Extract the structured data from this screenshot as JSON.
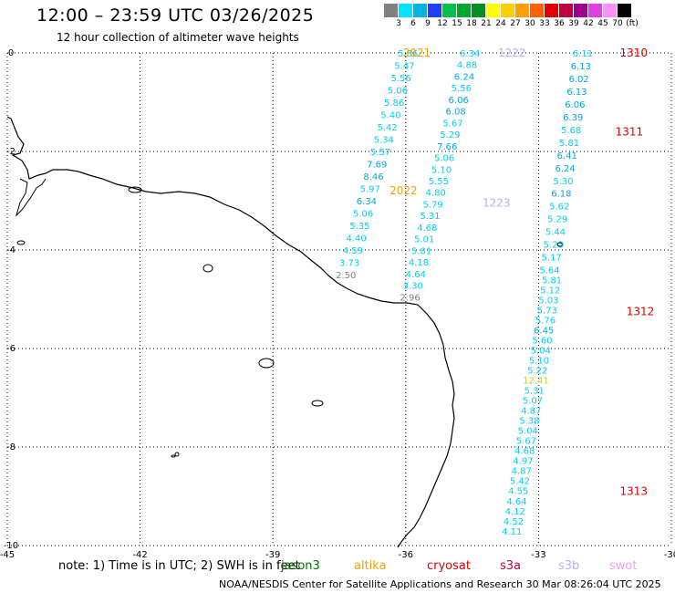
{
  "header": {
    "title": "12:00 – 23:59 UTC 03/26/2025",
    "subtitle": "12 hour collection of altimeter wave heights"
  },
  "legend": {
    "unit": "(ft)",
    "bins": [
      {
        "label": "3",
        "color": "#808080"
      },
      {
        "label": "6",
        "color": "#00e5ff"
      },
      {
        "label": "9",
        "color": "#00b5e5"
      },
      {
        "label": "12",
        "color": "#1f3fff"
      },
      {
        "label": "15",
        "color": "#00c050"
      },
      {
        "label": "18",
        "color": "#00a830"
      },
      {
        "label": "21",
        "color": "#009020"
      },
      {
        "label": "24",
        "color": "#ffff00"
      },
      {
        "label": "27",
        "color": "#ffd000"
      },
      {
        "label": "30",
        "color": "#ffa000"
      },
      {
        "label": "33",
        "color": "#ff6000"
      },
      {
        "label": "36",
        "color": "#e00000"
      },
      {
        "label": "39",
        "color": "#c00040"
      },
      {
        "label": "42",
        "color": "#a00090"
      },
      {
        "label": "45",
        "color": "#e040e0"
      },
      {
        "label": "70",
        "color": "#ff90ff"
      },
      {
        "label": "",
        "color": "#000000"
      }
    ]
  },
  "map": {
    "lon_ticks": [
      {
        "lon": -45,
        "label": "-45"
      },
      {
        "lon": -42,
        "label": "-42"
      },
      {
        "lon": -39,
        "label": "-39"
      },
      {
        "lon": -36,
        "label": "-36"
      },
      {
        "lon": -33,
        "label": "-33"
      },
      {
        "lon": -30,
        "label": "-30"
      }
    ],
    "lat_ticks": [
      {
        "lat": 0,
        "label": "0"
      },
      {
        "lat": -2,
        "label": "-2"
      },
      {
        "lat": -4,
        "label": "-4"
      },
      {
        "lat": -6,
        "label": "-6"
      },
      {
        "lat": -8,
        "label": "-8"
      },
      {
        "lat": -10,
        "label": "-10"
      }
    ],
    "lon_range": [
      -45,
      -30
    ],
    "lat_range": [
      -10,
      0
    ],
    "gridlines": "dotted"
  },
  "tracks": [
    {
      "name": "track-a",
      "start_lon": -35.95,
      "start_lat": 0.0,
      "end_lon": -37.35,
      "end_lat": -4.5,
      "values": [
        "5.86",
        "5.47",
        "5.56",
        "5.06",
        "5.86",
        "5.40",
        "5.42",
        "5.34",
        "5.57",
        "7.69",
        "8.46",
        "5.97",
        "6.34",
        "5.06",
        "5.35",
        "4.40",
        "4.59",
        "3.73",
        "2.50"
      ],
      "colors": [
        "#00d0f0",
        "#00d0f0",
        "#00d0f0",
        "#00d0f0",
        "#00d0f0",
        "#00d0f0",
        "#00d0f0",
        "#00d0f0",
        "#00d0f0",
        "#00a8d8",
        "#00a8d8",
        "#00d0f0",
        "#00a8d8",
        "#00d0f0",
        "#00d0f0",
        "#00d0f0",
        "#00d0f0",
        "#00d0f0",
        "#808080"
      ],
      "time_tags": [
        {
          "text": "2021",
          "lon": -35.75,
          "lat": 0.0,
          "color": "#f0a000"
        },
        {
          "text": "2022",
          "lon": -36.05,
          "lat": -2.8,
          "color": "#f0a000"
        }
      ]
    },
    {
      "name": "track-b",
      "start_lon": -34.55,
      "start_lat": 0.0,
      "end_lon": -35.9,
      "end_lat": -4.95,
      "values": [
        "6.34",
        "4.88",
        "6.24",
        "5.56",
        "6.06",
        "6.08",
        "5.67",
        "5.29",
        "7.66",
        "5.06",
        "5.10",
        "5.55",
        "4.80",
        "5.79",
        "5.31",
        "4.68",
        "5.01",
        "5.81",
        "4.18",
        "4.64",
        "3.30",
        "2.96"
      ],
      "colors": [
        "#00d0f0",
        "#00d0f0",
        "#00a8d8",
        "#00d0f0",
        "#00a8d8",
        "#00a8d8",
        "#00d0f0",
        "#00d0f0",
        "#00a8d8",
        "#00d0f0",
        "#00d0f0",
        "#00d0f0",
        "#00d0f0",
        "#00d0f0",
        "#00d0f0",
        "#00d0f0",
        "#00d0f0",
        "#00d0f0",
        "#00d0f0",
        "#00d0f0",
        "#00d0f0",
        "#808080"
      ],
      "time_tags": [
        {
          "text": "1222",
          "lon": -33.6,
          "lat": 0.0,
          "color": "#b8b0f0"
        },
        {
          "text": "1223",
          "lon": -33.95,
          "lat": -3.05,
          "color": "#b8b0f0"
        }
      ]
    },
    {
      "name": "track-c",
      "start_lon": -32.0,
      "start_lat": 0.0,
      "end_lon": -32.75,
      "end_lat": -4.4,
      "values": [
        "6.11",
        "6.13",
        "6.02",
        "6.13",
        "6.06",
        "6.39",
        "5.68",
        "5.81",
        "6.41",
        "6.24",
        "5.30",
        "6.18",
        "5.62",
        "5.29",
        "5.44",
        "5.23",
        "5.17",
        "5.64"
      ],
      "colors": [
        "#00d0f0",
        "#00a8d8",
        "#00a8d8",
        "#00a8d8",
        "#00a8d8",
        "#00a8d8",
        "#00d0f0",
        "#00d0f0",
        "#00a8d8",
        "#00a8d8",
        "#00d0f0",
        "#00a8d8",
        "#00d0f0",
        "#00d0f0",
        "#00d0f0",
        "#00d0f0",
        "#00d0f0",
        "#00d0f0"
      ],
      "time_tags": [
        {
          "text": "1310",
          "lon": -30.85,
          "lat": 0.0,
          "color": "#e00000"
        },
        {
          "text": "1311",
          "lon": -30.95,
          "lat": -1.6,
          "color": "#e00000"
        }
      ]
    },
    {
      "name": "track-d",
      "start_lon": -32.7,
      "start_lat": -4.6,
      "end_lon": -33.6,
      "end_lat": -9.7,
      "values": [
        "5.81",
        "5.12",
        "5.03",
        "5.73",
        "5.76",
        "6.45",
        "5.60",
        "5.04",
        "5.10",
        "5.22",
        "12.41",
        "5.31",
        "5.07",
        "4.87",
        "5.38",
        "5.04",
        "5.67",
        "4.68",
        "4.97",
        "4.87",
        "5.42",
        "4.55",
        "4.64",
        "4.12",
        "4.52",
        "4.11"
      ],
      "colors": [
        "#00d0f0",
        "#00d0f0",
        "#00d0f0",
        "#00d0f0",
        "#00d0f0",
        "#00a8d8",
        "#00d0f0",
        "#00d0f0",
        "#00d0f0",
        "#00d0f0",
        "#c0d030",
        "#00d0f0",
        "#00d0f0",
        "#00d0f0",
        "#00d0f0",
        "#00d0f0",
        "#00d0f0",
        "#00d0f0",
        "#00d0f0",
        "#00d0f0",
        "#00d0f0",
        "#00d0f0",
        "#00d0f0",
        "#00d0f0",
        "#00d0f0",
        "#00d0f0"
      ],
      "time_tags": [
        {
          "text": "1312",
          "lon": -30.7,
          "lat": -5.25,
          "color": "#e00000"
        },
        {
          "text": "1313",
          "lon": -30.85,
          "lat": -8.9,
          "color": "#e00000"
        }
      ]
    }
  ],
  "footer": {
    "note": "note:  1) Time is in UTC; 2) SWH is in feet",
    "satellites": [
      {
        "name": "jason3",
        "color": "#007000"
      },
      {
        "name": "altika",
        "color": "#f0a000"
      },
      {
        "name": "cryosat",
        "color": "#e00000"
      },
      {
        "name": "s3a",
        "color": "#c00040"
      },
      {
        "name": "s3b",
        "color": "#b8b0f0"
      },
      {
        "name": "swot",
        "color": "#f0a0f0"
      }
    ],
    "credit": "NOAA/NESDIS Center for Satellite Applications and Research    30 Mar 08:26:04 UTC 2025"
  }
}
